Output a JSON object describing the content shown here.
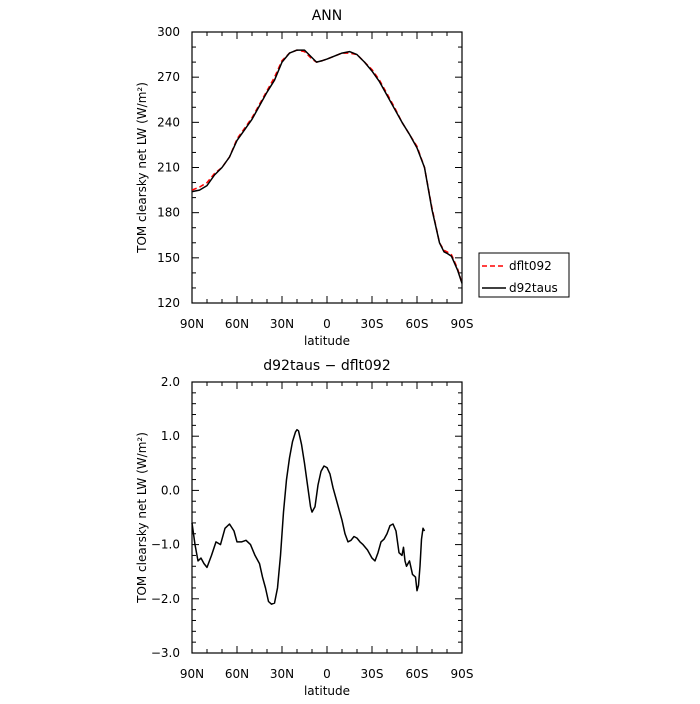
{
  "chart_data": [
    {
      "type": "line",
      "title": "ANN",
      "xlabel": "latitude",
      "ylabel": "TOM clearsky net LW (W/m²)",
      "xlim": [
        -90,
        90
      ],
      "ylim": [
        120,
        300
      ],
      "x_ticks": [
        {
          "value": -90,
          "label": "90N"
        },
        {
          "value": -60,
          "label": "60N"
        },
        {
          "value": -30,
          "label": "30N"
        },
        {
          "value": 0,
          "label": "0"
        },
        {
          "value": 30,
          "label": "30S"
        },
        {
          "value": 60,
          "label": "60S"
        },
        {
          "value": 90,
          "label": "90S"
        }
      ],
      "y_ticks": [
        {
          "value": 120,
          "label": "120"
        },
        {
          "value": 150,
          "label": "150"
        },
        {
          "value": 180,
          "label": "180"
        },
        {
          "value": 210,
          "label": "210"
        },
        {
          "value": 240,
          "label": "240"
        },
        {
          "value": 270,
          "label": "270"
        },
        {
          "value": 300,
          "label": "300"
        }
      ],
      "legend": "right",
      "series": [
        {
          "name": "dflt092",
          "color": "#ff0000",
          "dash": "dashed",
          "points": [
            [
              -90,
              195
            ],
            [
              -85,
              197
            ],
            [
              -80,
              200
            ],
            [
              -75,
              206
            ],
            [
              -70,
              210
            ],
            [
              -65,
              217
            ],
            [
              -60,
              229
            ],
            [
              -55,
              236
            ],
            [
              -50,
              243
            ],
            [
              -45,
              252
            ],
            [
              -40,
              261
            ],
            [
              -35,
              270
            ],
            [
              -30,
              281
            ],
            [
              -25,
              286
            ],
            [
              -20,
              288
            ],
            [
              -15,
              287
            ],
            [
              -10,
              282
            ],
            [
              -7,
              280
            ],
            [
              -3,
              281
            ],
            [
              0,
              282
            ],
            [
              5,
              284
            ],
            [
              10,
              286
            ],
            [
              15,
              286
            ],
            [
              20,
              285
            ],
            [
              25,
              280
            ],
            [
              30,
              275
            ],
            [
              35,
              268
            ],
            [
              40,
              259
            ],
            [
              45,
              250
            ],
            [
              50,
              240
            ],
            [
              55,
              232
            ],
            [
              60,
              224
            ],
            [
              65,
              210
            ],
            [
              70,
              183
            ],
            [
              75,
              160
            ],
            [
              78,
              155
            ],
            [
              80,
              154
            ],
            [
              83,
              152
            ],
            [
              87,
              143
            ],
            [
              90,
              133
            ]
          ]
        },
        {
          "name": "d92taus",
          "color": "#000000",
          "dash": "solid",
          "points": [
            [
              -90,
              194
            ],
            [
              -85,
              195
            ],
            [
              -80,
              198
            ],
            [
              -75,
              205
            ],
            [
              -70,
              210
            ],
            [
              -65,
              217
            ],
            [
              -60,
              228
            ],
            [
              -55,
              235
            ],
            [
              -50,
              242
            ],
            [
              -45,
              251
            ],
            [
              -40,
              260
            ],
            [
              -35,
              268
            ],
            [
              -30,
              280
            ],
            [
              -25,
              286
            ],
            [
              -20,
              288
            ],
            [
              -15,
              288
            ],
            [
              -10,
              283
            ],
            [
              -7,
              280
            ],
            [
              -3,
              281
            ],
            [
              0,
              282
            ],
            [
              5,
              284
            ],
            [
              10,
              286
            ],
            [
              15,
              287
            ],
            [
              20,
              285
            ],
            [
              25,
              280
            ],
            [
              30,
              274
            ],
            [
              35,
              267
            ],
            [
              40,
              258
            ],
            [
              45,
              249
            ],
            [
              50,
              240
            ],
            [
              55,
              232
            ],
            [
              60,
              223
            ],
            [
              65,
              210
            ],
            [
              70,
              182
            ],
            [
              75,
              160
            ],
            [
              78,
              154
            ],
            [
              80,
              153
            ],
            [
              83,
              151
            ],
            [
              87,
              142
            ],
            [
              90,
              133
            ]
          ]
        }
      ]
    },
    {
      "type": "line",
      "title": "d92taus − dflt092",
      "xlabel": "latitude",
      "ylabel": "TOM clearsky net LW (W/m²)",
      "xlim": [
        -90,
        90
      ],
      "ylim": [
        -3.0,
        2.0
      ],
      "x_ticks": [
        {
          "value": -90,
          "label": "90N"
        },
        {
          "value": -60,
          "label": "60N"
        },
        {
          "value": -30,
          "label": "30N"
        },
        {
          "value": 0,
          "label": "0"
        },
        {
          "value": 30,
          "label": "30S"
        },
        {
          "value": 60,
          "label": "60S"
        },
        {
          "value": 90,
          "label": "90S"
        }
      ],
      "y_ticks": [
        {
          "value": -3.0,
          "label": "−3.0"
        },
        {
          "value": -2.0,
          "label": "−2.0"
        },
        {
          "value": -1.0,
          "label": "−1.0"
        },
        {
          "value": 0.0,
          "label": "0.0"
        },
        {
          "value": 1.0,
          "label": "1.0"
        },
        {
          "value": 2.0,
          "label": "2.0"
        }
      ],
      "series": [
        {
          "color": "#000000",
          "dash": "solid",
          "points": [
            [
              -90,
              -0.6
            ],
            [
              -88,
              -1.0
            ],
            [
              -86,
              -1.3
            ],
            [
              -84,
              -1.25
            ],
            [
              -82,
              -1.35
            ],
            [
              -80,
              -1.42
            ],
            [
              -77,
              -1.2
            ],
            [
              -74,
              -0.95
            ],
            [
              -71,
              -1.0
            ],
            [
              -68,
              -0.7
            ],
            [
              -65,
              -0.62
            ],
            [
              -62,
              -0.75
            ],
            [
              -60,
              -0.95
            ],
            [
              -57,
              -0.95
            ],
            [
              -54,
              -0.92
            ],
            [
              -51,
              -1.0
            ],
            [
              -48,
              -1.2
            ],
            [
              -45,
              -1.35
            ],
            [
              -43,
              -1.6
            ],
            [
              -41,
              -1.8
            ],
            [
              -39,
              -2.05
            ],
            [
              -37,
              -2.1
            ],
            [
              -35,
              -2.08
            ],
            [
              -33,
              -1.8
            ],
            [
              -31,
              -1.2
            ],
            [
              -29,
              -0.4
            ],
            [
              -27,
              0.2
            ],
            [
              -25,
              0.6
            ],
            [
              -23,
              0.9
            ],
            [
              -21,
              1.08
            ],
            [
              -20,
              1.12
            ],
            [
              -19,
              1.1
            ],
            [
              -17,
              0.85
            ],
            [
              -15,
              0.5
            ],
            [
              -13,
              0.1
            ],
            [
              -11,
              -0.3
            ],
            [
              -10,
              -0.4
            ],
            [
              -8,
              -0.3
            ],
            [
              -6,
              0.1
            ],
            [
              -4,
              0.35
            ],
            [
              -2,
              0.45
            ],
            [
              0,
              0.42
            ],
            [
              2,
              0.3
            ],
            [
              4,
              0.05
            ],
            [
              6,
              -0.15
            ],
            [
              8,
              -0.35
            ],
            [
              10,
              -0.55
            ],
            [
              12,
              -0.8
            ],
            [
              14,
              -0.95
            ],
            [
              16,
              -0.92
            ],
            [
              18,
              -0.85
            ],
            [
              20,
              -0.88
            ],
            [
              22,
              -0.95
            ],
            [
              24,
              -1.0
            ],
            [
              27,
              -1.1
            ],
            [
              30,
              -1.25
            ],
            [
              32,
              -1.3
            ],
            [
              34,
              -1.15
            ],
            [
              36,
              -0.95
            ],
            [
              38,
              -0.9
            ],
            [
              40,
              -0.8
            ],
            [
              42,
              -0.65
            ],
            [
              44,
              -0.62
            ],
            [
              46,
              -0.75
            ],
            [
              48,
              -1.15
            ],
            [
              50,
              -1.2
            ],
            [
              51,
              -1.05
            ],
            [
              52,
              -1.3
            ],
            [
              53,
              -1.4
            ],
            [
              55,
              -1.3
            ],
            [
              57,
              -1.55
            ],
            [
              59,
              -1.6
            ],
            [
              60,
              -1.85
            ],
            [
              61,
              -1.75
            ],
            [
              62,
              -1.4
            ],
            [
              63,
              -0.9
            ],
            [
              64,
              -0.7
            ],
            [
              65,
              -0.75
            ]
          ]
        }
      ]
    }
  ]
}
